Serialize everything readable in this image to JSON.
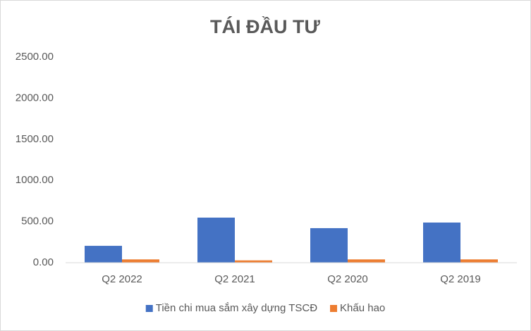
{
  "chart_data": {
    "type": "bar",
    "title": "TÁI ĐẦU TƯ",
    "categories": [
      "Q2 2022",
      "Q2 2021",
      "Q2 2020",
      "Q2 2019"
    ],
    "series": [
      {
        "name": "Tiền chi mua sắm xây dựng TSCĐ",
        "color": "#4472c4",
        "values": [
          205,
          548,
          420,
          488
        ]
      },
      {
        "name": "Khấu hao",
        "color": "#ed7d31",
        "values": [
          40,
          28,
          40,
          40
        ]
      }
    ],
    "ylim": [
      0,
      2500
    ],
    "yticks": [
      {
        "value": 0,
        "label": "0.00"
      },
      {
        "value": 500,
        "label": "500.00"
      },
      {
        "value": 1000,
        "label": "1000.00"
      },
      {
        "value": 1500,
        "label": "1500.00"
      },
      {
        "value": 2000,
        "label": "2000.00"
      },
      {
        "value": 2500,
        "label": "2500.00"
      }
    ],
    "grid": false,
    "legend": "bottom"
  }
}
